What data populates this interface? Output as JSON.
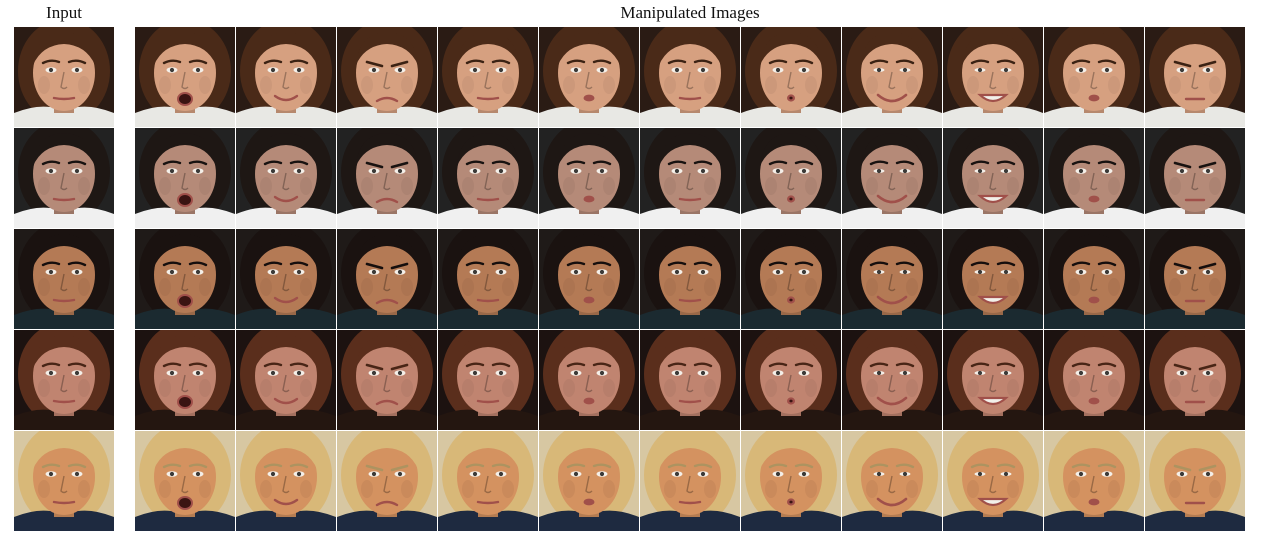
{
  "headings": {
    "input": "Input",
    "manipulated": "Manipulated Images"
  },
  "subjects": [
    {
      "id": "young-man",
      "background": "#2a1b14",
      "hair": "#4a2a18",
      "skin": "#d6a080",
      "shirt": "#e8e8e4"
    },
    {
      "id": "dark-haired-woman",
      "background": "#222222",
      "hair": "#1e1714",
      "skin": "#b58a78",
      "shirt": "#f0f0f0"
    },
    {
      "id": "woman-with-bun",
      "background": "#1f1a18",
      "hair": "#1a1210",
      "skin": "#b47a55",
      "shirt": "#1b2a30"
    },
    {
      "id": "red-haired-woman",
      "background": "#1c1210",
      "hair": "#5a2e1c",
      "skin": "#c08470",
      "shirt": "#241610"
    },
    {
      "id": "older-man",
      "background": "#d7c7a2",
      "hair": "#d8b878",
      "skin": "#d49260",
      "shirt": "#1e2a40"
    }
  ],
  "expressions": [
    "neutral",
    "open-mouth",
    "smile",
    "frown",
    "neutral",
    "slight-pout",
    "neutral",
    "pucker",
    "wide-smile",
    "teeth-grin",
    "pout",
    "furrowed-brow"
  ]
}
